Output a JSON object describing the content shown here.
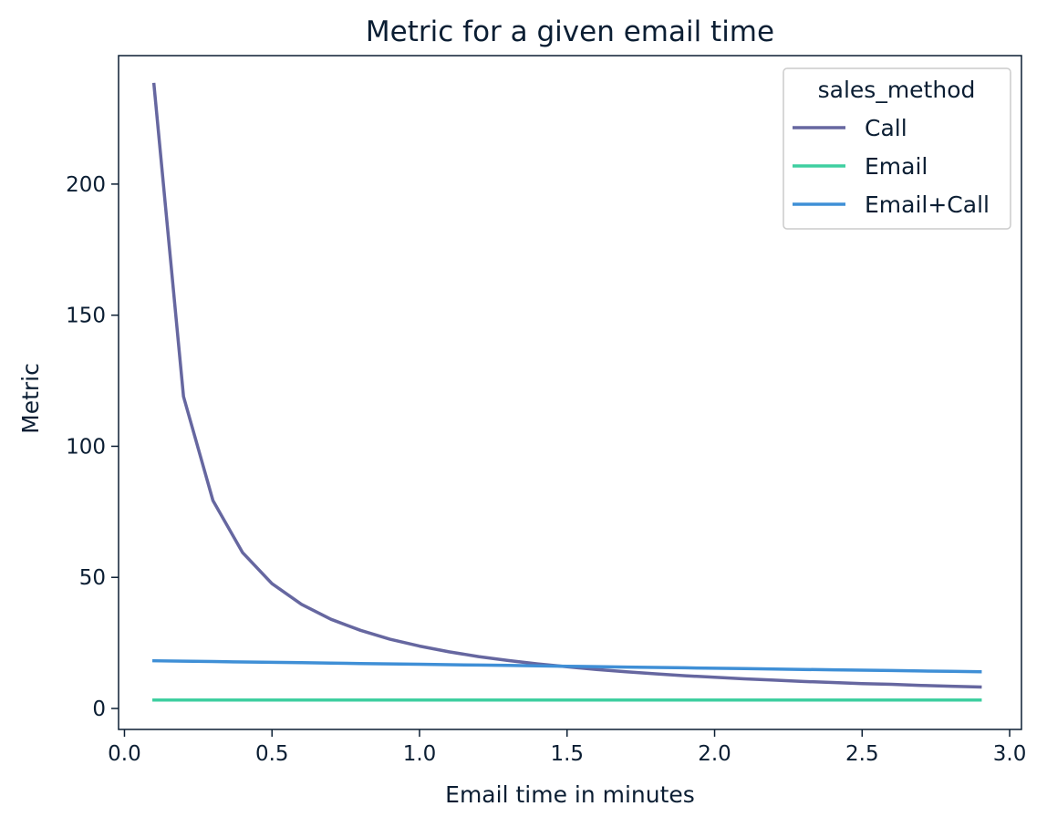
{
  "chart_data": {
    "type": "line",
    "title": "Metric for a given email time",
    "xlabel": "Email time in minutes",
    "ylabel": "Metric",
    "xlim": [
      -0.02,
      3.04
    ],
    "ylim": [
      -8,
      249
    ],
    "xticks": [
      0.0,
      0.5,
      1.0,
      1.5,
      2.0,
      2.5,
      3.0
    ],
    "xtick_labels": [
      "0.0",
      "0.5",
      "1.0",
      "1.5",
      "2.0",
      "2.5",
      "3.0"
    ],
    "yticks": [
      0,
      50,
      100,
      150,
      200
    ],
    "ytick_labels": [
      "0",
      "50",
      "100",
      "150",
      "200"
    ],
    "grid": false,
    "legend": {
      "title": "sales_method",
      "placement": "top-right"
    },
    "x": [
      0.1,
      0.2,
      0.3,
      0.4,
      0.5,
      0.6,
      0.7,
      0.8,
      0.9,
      1.0,
      1.1,
      1.2,
      1.3,
      1.4,
      1.5,
      1.6,
      1.7,
      1.8,
      1.9,
      2.0,
      2.1,
      2.2,
      2.3,
      2.4,
      2.5,
      2.6,
      2.7,
      2.8,
      2.9
    ],
    "series": [
      {
        "name": "Call",
        "color": "#6667a0",
        "values": [
          238.0,
          119.0,
          79.3,
          59.5,
          47.6,
          39.7,
          34.0,
          29.8,
          26.4,
          23.8,
          21.6,
          19.8,
          18.3,
          17.0,
          15.9,
          14.9,
          14.0,
          13.2,
          12.5,
          11.9,
          11.3,
          10.8,
          10.3,
          9.9,
          9.5,
          9.2,
          8.8,
          8.5,
          8.2
        ]
      },
      {
        "name": "Email",
        "color": "#3ecfa0",
        "values": [
          3.2,
          3.2,
          3.2,
          3.2,
          3.2,
          3.2,
          3.2,
          3.2,
          3.2,
          3.2,
          3.2,
          3.2,
          3.2,
          3.2,
          3.2,
          3.2,
          3.2,
          3.2,
          3.2,
          3.2,
          3.2,
          3.2,
          3.2,
          3.2,
          3.2,
          3.2,
          3.2,
          3.2,
          3.2
        ]
      },
      {
        "name": "Email+Call",
        "color": "#3f8fd6",
        "values": [
          18.2,
          18.05,
          17.9,
          17.75,
          17.6,
          17.45,
          17.3,
          17.15,
          17.0,
          16.85,
          16.7,
          16.55,
          16.4,
          16.25,
          16.1,
          15.95,
          15.8,
          15.65,
          15.5,
          15.35,
          15.2,
          15.05,
          14.9,
          14.75,
          14.6,
          14.45,
          14.3,
          14.15,
          14.0
        ]
      }
    ]
  }
}
